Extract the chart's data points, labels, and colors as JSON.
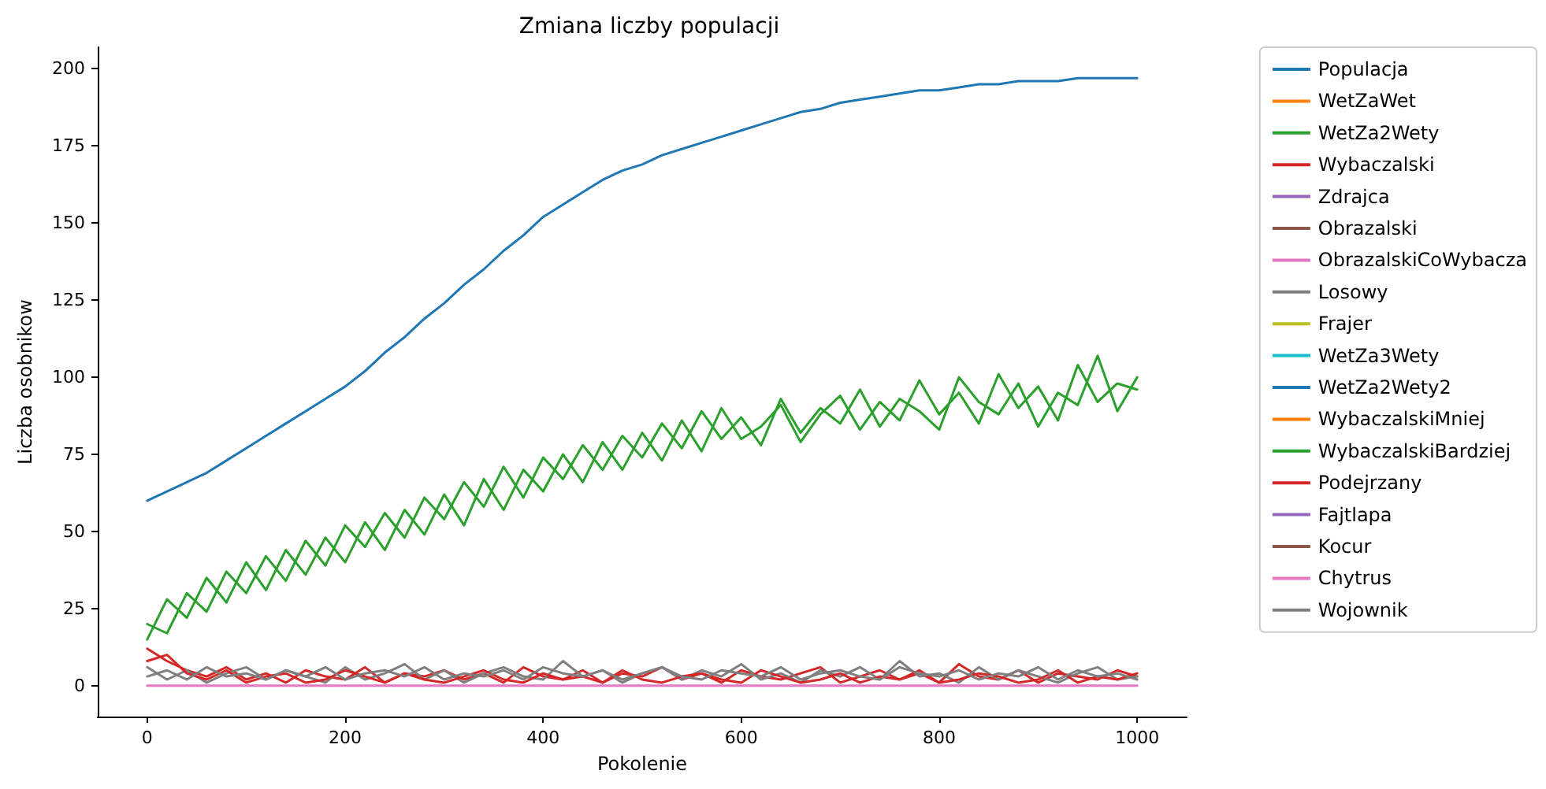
{
  "chart_data": {
    "type": "line",
    "title": "Zmiana liczby populacji",
    "xlabel": "Pokolenie",
    "ylabel": "Liczba osobnikow",
    "x": [
      0,
      20,
      40,
      60,
      80,
      100,
      120,
      140,
      160,
      180,
      200,
      220,
      240,
      260,
      280,
      300,
      320,
      340,
      360,
      380,
      400,
      420,
      440,
      460,
      480,
      500,
      520,
      540,
      560,
      580,
      600,
      620,
      640,
      660,
      680,
      700,
      720,
      740,
      760,
      780,
      800,
      820,
      840,
      860,
      880,
      900,
      920,
      940,
      960,
      980,
      1000
    ],
    "xlim": [
      -50,
      1050
    ],
    "xticks": [
      0,
      200,
      400,
      600,
      800,
      1000
    ],
    "ylim": [
      -10,
      207
    ],
    "yticks": [
      0,
      25,
      50,
      75,
      100,
      125,
      150,
      175,
      200
    ],
    "grid": false,
    "legend": "top right",
    "marker": "none",
    "line_style": "solid",
    "series": [
      {
        "name": "Populacja",
        "color": "#1f77b4",
        "values": [
          60,
          63,
          66,
          69,
          73,
          77,
          81,
          85,
          89,
          93,
          97,
          102,
          108,
          113,
          119,
          124,
          130,
          135,
          141,
          146,
          152,
          156,
          160,
          164,
          167,
          169,
          172,
          174,
          176,
          178,
          180,
          182,
          184,
          186,
          187,
          189,
          190,
          191,
          192,
          193,
          193,
          194,
          195,
          195,
          196,
          196,
          196,
          197,
          197,
          197,
          197
        ]
      },
      {
        "name": "WetZaWet",
        "color": "#ff7f0e",
        "values": [
          null,
          null,
          null,
          null,
          null,
          null,
          null,
          null,
          null,
          null,
          null,
          null,
          null,
          null,
          null,
          null,
          null,
          null,
          null,
          null,
          null,
          null,
          null,
          null,
          null,
          null,
          null,
          null,
          null,
          null,
          null,
          null,
          null,
          null,
          null,
          null,
          null,
          null,
          null,
          null,
          null,
          null,
          null,
          null,
          null,
          null,
          null,
          null,
          null,
          null,
          null
        ]
      },
      {
        "name": "WetZa2Wety",
        "color": "#2ca02c",
        "values": [
          15,
          28,
          22,
          35,
          27,
          40,
          31,
          44,
          36,
          48,
          40,
          53,
          44,
          57,
          49,
          62,
          52,
          67,
          57,
          70,
          63,
          75,
          66,
          79,
          70,
          82,
          73,
          86,
          76,
          90,
          80,
          84,
          91,
          79,
          88,
          94,
          83,
          92,
          86,
          99,
          88,
          95,
          85,
          101,
          90,
          97,
          86,
          104,
          92,
          98,
          96
        ]
      },
      {
        "name": "Wybaczalski",
        "color": "#d62728",
        "values": [
          12,
          8,
          5,
          3,
          6,
          2,
          4,
          1,
          5,
          3,
          2,
          6,
          1,
          4,
          3,
          5,
          2,
          4,
          1,
          6,
          3,
          2,
          5,
          1,
          4,
          3,
          6,
          2,
          4,
          1,
          5,
          3,
          2,
          4,
          6,
          1,
          3,
          5,
          2,
          4,
          1,
          7,
          3,
          2,
          5,
          1,
          4,
          3,
          2,
          5,
          3
        ]
      },
      {
        "name": "Zdrajca",
        "color": "#9467bd",
        "values": [
          null,
          null,
          null,
          null,
          null,
          null,
          null,
          null,
          null,
          null,
          null,
          null,
          null,
          null,
          null,
          null,
          null,
          null,
          null,
          null,
          null,
          null,
          null,
          null,
          null,
          null,
          null,
          null,
          null,
          null,
          null,
          null,
          null,
          null,
          null,
          null,
          null,
          null,
          null,
          null,
          null,
          null,
          null,
          null,
          null,
          null,
          null,
          null,
          null,
          null,
          null
        ]
      },
      {
        "name": "Obrazalski",
        "color": "#8c564b",
        "values": [
          null,
          null,
          null,
          null,
          null,
          null,
          null,
          null,
          null,
          null,
          null,
          null,
          null,
          null,
          null,
          null,
          null,
          null,
          null,
          null,
          null,
          null,
          null,
          null,
          null,
          null,
          null,
          null,
          null,
          null,
          null,
          null,
          null,
          null,
          null,
          null,
          null,
          null,
          null,
          null,
          null,
          null,
          null,
          null,
          null,
          null,
          null,
          null,
          null,
          null,
          null
        ]
      },
      {
        "name": "ObrazalskiCoWybacza",
        "color": "#e377c2",
        "values": [
          null,
          null,
          null,
          null,
          null,
          null,
          null,
          null,
          null,
          null,
          null,
          null,
          null,
          null,
          null,
          null,
          null,
          null,
          null,
          null,
          null,
          null,
          null,
          null,
          null,
          null,
          null,
          null,
          null,
          null,
          null,
          null,
          null,
          null,
          null,
          null,
          null,
          null,
          null,
          null,
          null,
          null,
          null,
          null,
          null,
          null,
          null,
          null,
          null,
          null,
          null
        ]
      },
      {
        "name": "Losowy",
        "color": "#7f7f7f",
        "values": [
          6,
          2,
          5,
          1,
          4,
          6,
          2,
          5,
          3,
          1,
          6,
          2,
          4,
          7,
          2,
          5,
          1,
          4,
          6,
          3,
          2,
          8,
          3,
          5,
          1,
          4,
          6,
          2,
          5,
          3,
          7,
          2,
          4,
          1,
          5,
          3,
          6,
          2,
          8,
          3,
          4,
          1,
          6,
          2,
          5,
          3,
          1,
          4,
          6,
          2,
          3
        ]
      },
      {
        "name": "Frajer",
        "color": "#bcbd22",
        "values": [
          null,
          null,
          null,
          null,
          null,
          null,
          null,
          null,
          null,
          null,
          null,
          null,
          null,
          null,
          null,
          null,
          null,
          null,
          null,
          null,
          null,
          null,
          null,
          null,
          null,
          null,
          null,
          null,
          null,
          null,
          null,
          null,
          null,
          null,
          null,
          null,
          null,
          null,
          null,
          null,
          null,
          null,
          null,
          null,
          null,
          null,
          null,
          null,
          null,
          null,
          null
        ]
      },
      {
        "name": "WetZa3Wety",
        "color": "#17becf",
        "values": [
          null,
          null,
          null,
          null,
          null,
          null,
          null,
          null,
          null,
          null,
          null,
          null,
          null,
          null,
          null,
          null,
          null,
          null,
          null,
          null,
          null,
          null,
          null,
          null,
          null,
          null,
          null,
          null,
          null,
          null,
          null,
          null,
          null,
          null,
          null,
          null,
          null,
          null,
          null,
          null,
          null,
          null,
          null,
          null,
          null,
          null,
          null,
          null,
          null,
          null,
          null
        ]
      },
      {
        "name": "WetZa2Wety2",
        "color": "#1f77b4",
        "values": [
          null,
          null,
          null,
          null,
          null,
          null,
          null,
          null,
          null,
          null,
          null,
          null,
          null,
          null,
          null,
          null,
          null,
          null,
          null,
          null,
          null,
          null,
          null,
          null,
          null,
          null,
          null,
          null,
          null,
          null,
          null,
          null,
          null,
          null,
          null,
          null,
          null,
          null,
          null,
          null,
          null,
          null,
          null,
          null,
          null,
          null,
          null,
          null,
          null,
          null,
          null
        ]
      },
      {
        "name": "WybaczalskiMniej",
        "color": "#ff7f0e",
        "values": [
          null,
          null,
          null,
          null,
          null,
          null,
          null,
          null,
          null,
          null,
          null,
          null,
          null,
          null,
          null,
          null,
          null,
          null,
          null,
          null,
          null,
          null,
          null,
          null,
          null,
          null,
          null,
          null,
          null,
          null,
          null,
          null,
          null,
          null,
          null,
          null,
          null,
          null,
          null,
          null,
          null,
          null,
          null,
          null,
          null,
          null,
          null,
          null,
          null,
          null,
          null
        ]
      },
      {
        "name": "WybaczalskiBardziej",
        "color": "#2ca02c",
        "values": [
          20,
          17,
          30,
          24,
          37,
          30,
          42,
          34,
          47,
          39,
          52,
          45,
          56,
          48,
          61,
          54,
          66,
          58,
          71,
          61,
          74,
          67,
          78,
          70,
          81,
          74,
          85,
          77,
          89,
          80,
          87,
          78,
          93,
          82,
          90,
          85,
          96,
          84,
          93,
          89,
          83,
          100,
          92,
          88,
          98,
          84,
          95,
          91,
          107,
          89,
          100
        ]
      },
      {
        "name": "Podejrzany",
        "color": "#d62728",
        "values": [
          8,
          10,
          4,
          2,
          5,
          1,
          3,
          4,
          1,
          2,
          5,
          3,
          1,
          4,
          2,
          1,
          3,
          5,
          2,
          1,
          4,
          2,
          3,
          1,
          5,
          2,
          1,
          3,
          4,
          2,
          1,
          5,
          3,
          1,
          2,
          4,
          1,
          3,
          2,
          5,
          1,
          2,
          4,
          3,
          1,
          2,
          5,
          1,
          3,
          2,
          4
        ]
      },
      {
        "name": "Fajtlapa",
        "color": "#9467bd",
        "values": [
          null,
          null,
          null,
          null,
          null,
          null,
          null,
          null,
          null,
          null,
          null,
          null,
          null,
          null,
          null,
          null,
          null,
          null,
          null,
          null,
          null,
          null,
          null,
          null,
          null,
          null,
          null,
          null,
          null,
          null,
          null,
          null,
          null,
          null,
          null,
          null,
          null,
          null,
          null,
          null,
          null,
          null,
          null,
          null,
          null,
          null,
          null,
          null,
          null,
          null,
          null
        ]
      },
      {
        "name": "Kocur",
        "color": "#8c564b",
        "values": [
          null,
          null,
          null,
          null,
          null,
          null,
          null,
          null,
          null,
          null,
          null,
          null,
          null,
          null,
          null,
          null,
          null,
          null,
          null,
          null,
          null,
          null,
          null,
          null,
          null,
          null,
          null,
          null,
          null,
          null,
          null,
          null,
          null,
          null,
          null,
          null,
          null,
          null,
          null,
          null,
          null,
          null,
          null,
          null,
          null,
          null,
          null,
          null,
          null,
          null,
          null
        ]
      },
      {
        "name": "Chytrus",
        "color": "#e377c2",
        "values": [
          0,
          0,
          0,
          0,
          0,
          0,
          0,
          0,
          0,
          0,
          0,
          0,
          0,
          0,
          0,
          0,
          0,
          0,
          0,
          0,
          0,
          0,
          0,
          0,
          0,
          0,
          0,
          0,
          0,
          0,
          0,
          0,
          0,
          0,
          0,
          0,
          0,
          0,
          0,
          0,
          0,
          0,
          0,
          0,
          0,
          0,
          0,
          0,
          0,
          0,
          0
        ]
      },
      {
        "name": "Wojownik",
        "color": "#7f7f7f",
        "values": [
          3,
          5,
          2,
          6,
          3,
          4,
          2,
          5,
          3,
          6,
          2,
          4,
          5,
          3,
          6,
          2,
          4,
          3,
          5,
          2,
          6,
          4,
          3,
          5,
          2,
          4,
          6,
          3,
          2,
          5,
          4,
          3,
          6,
          2,
          4,
          5,
          3,
          2,
          6,
          4,
          3,
          5,
          2,
          4,
          3,
          6,
          2,
          5,
          3,
          4,
          2
        ]
      }
    ]
  }
}
